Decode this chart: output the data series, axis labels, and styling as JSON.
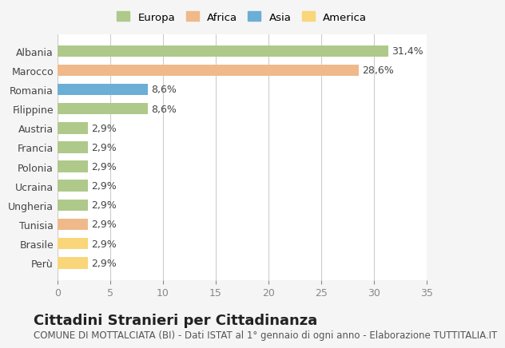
{
  "categories": [
    "Albania",
    "Marocco",
    "Romania",
    "Filippine",
    "Austria",
    "Francia",
    "Polonia",
    "Ucraina",
    "Ungheria",
    "Tunisia",
    "Brasile",
    "Perù"
  ],
  "values": [
    31.4,
    28.6,
    8.6,
    8.6,
    2.9,
    2.9,
    2.9,
    2.9,
    2.9,
    2.9,
    2.9,
    2.9
  ],
  "labels": [
    "31,4%",
    "28,6%",
    "8,6%",
    "8,6%",
    "2,9%",
    "2,9%",
    "2,9%",
    "2,9%",
    "2,9%",
    "2,9%",
    "2,9%",
    "2,9%"
  ],
  "colors": [
    "#aec98a",
    "#f0b989",
    "#6baed6",
    "#aec98a",
    "#aec98a",
    "#aec98a",
    "#aec98a",
    "#aec98a",
    "#aec98a",
    "#f0b989",
    "#f9d67a",
    "#f9d67a"
  ],
  "legend_labels": [
    "Europa",
    "Africa",
    "Asia",
    "America"
  ],
  "legend_colors": [
    "#aec98a",
    "#f0b989",
    "#6baed6",
    "#f9d67a"
  ],
  "title": "Cittadini Stranieri per Cittadinanza",
  "subtitle": "COMUNE DI MOTTALCIATA (BI) - Dati ISTAT al 1° gennaio di ogni anno - Elaborazione TUTTITALIA.IT",
  "xlim": [
    0,
    35
  ],
  "xticks": [
    0,
    5,
    10,
    15,
    20,
    25,
    30,
    35
  ],
  "background_color": "#f5f5f5",
  "bar_background": "#ffffff",
  "title_fontsize": 13,
  "subtitle_fontsize": 8.5,
  "label_fontsize": 9,
  "tick_fontsize": 9
}
